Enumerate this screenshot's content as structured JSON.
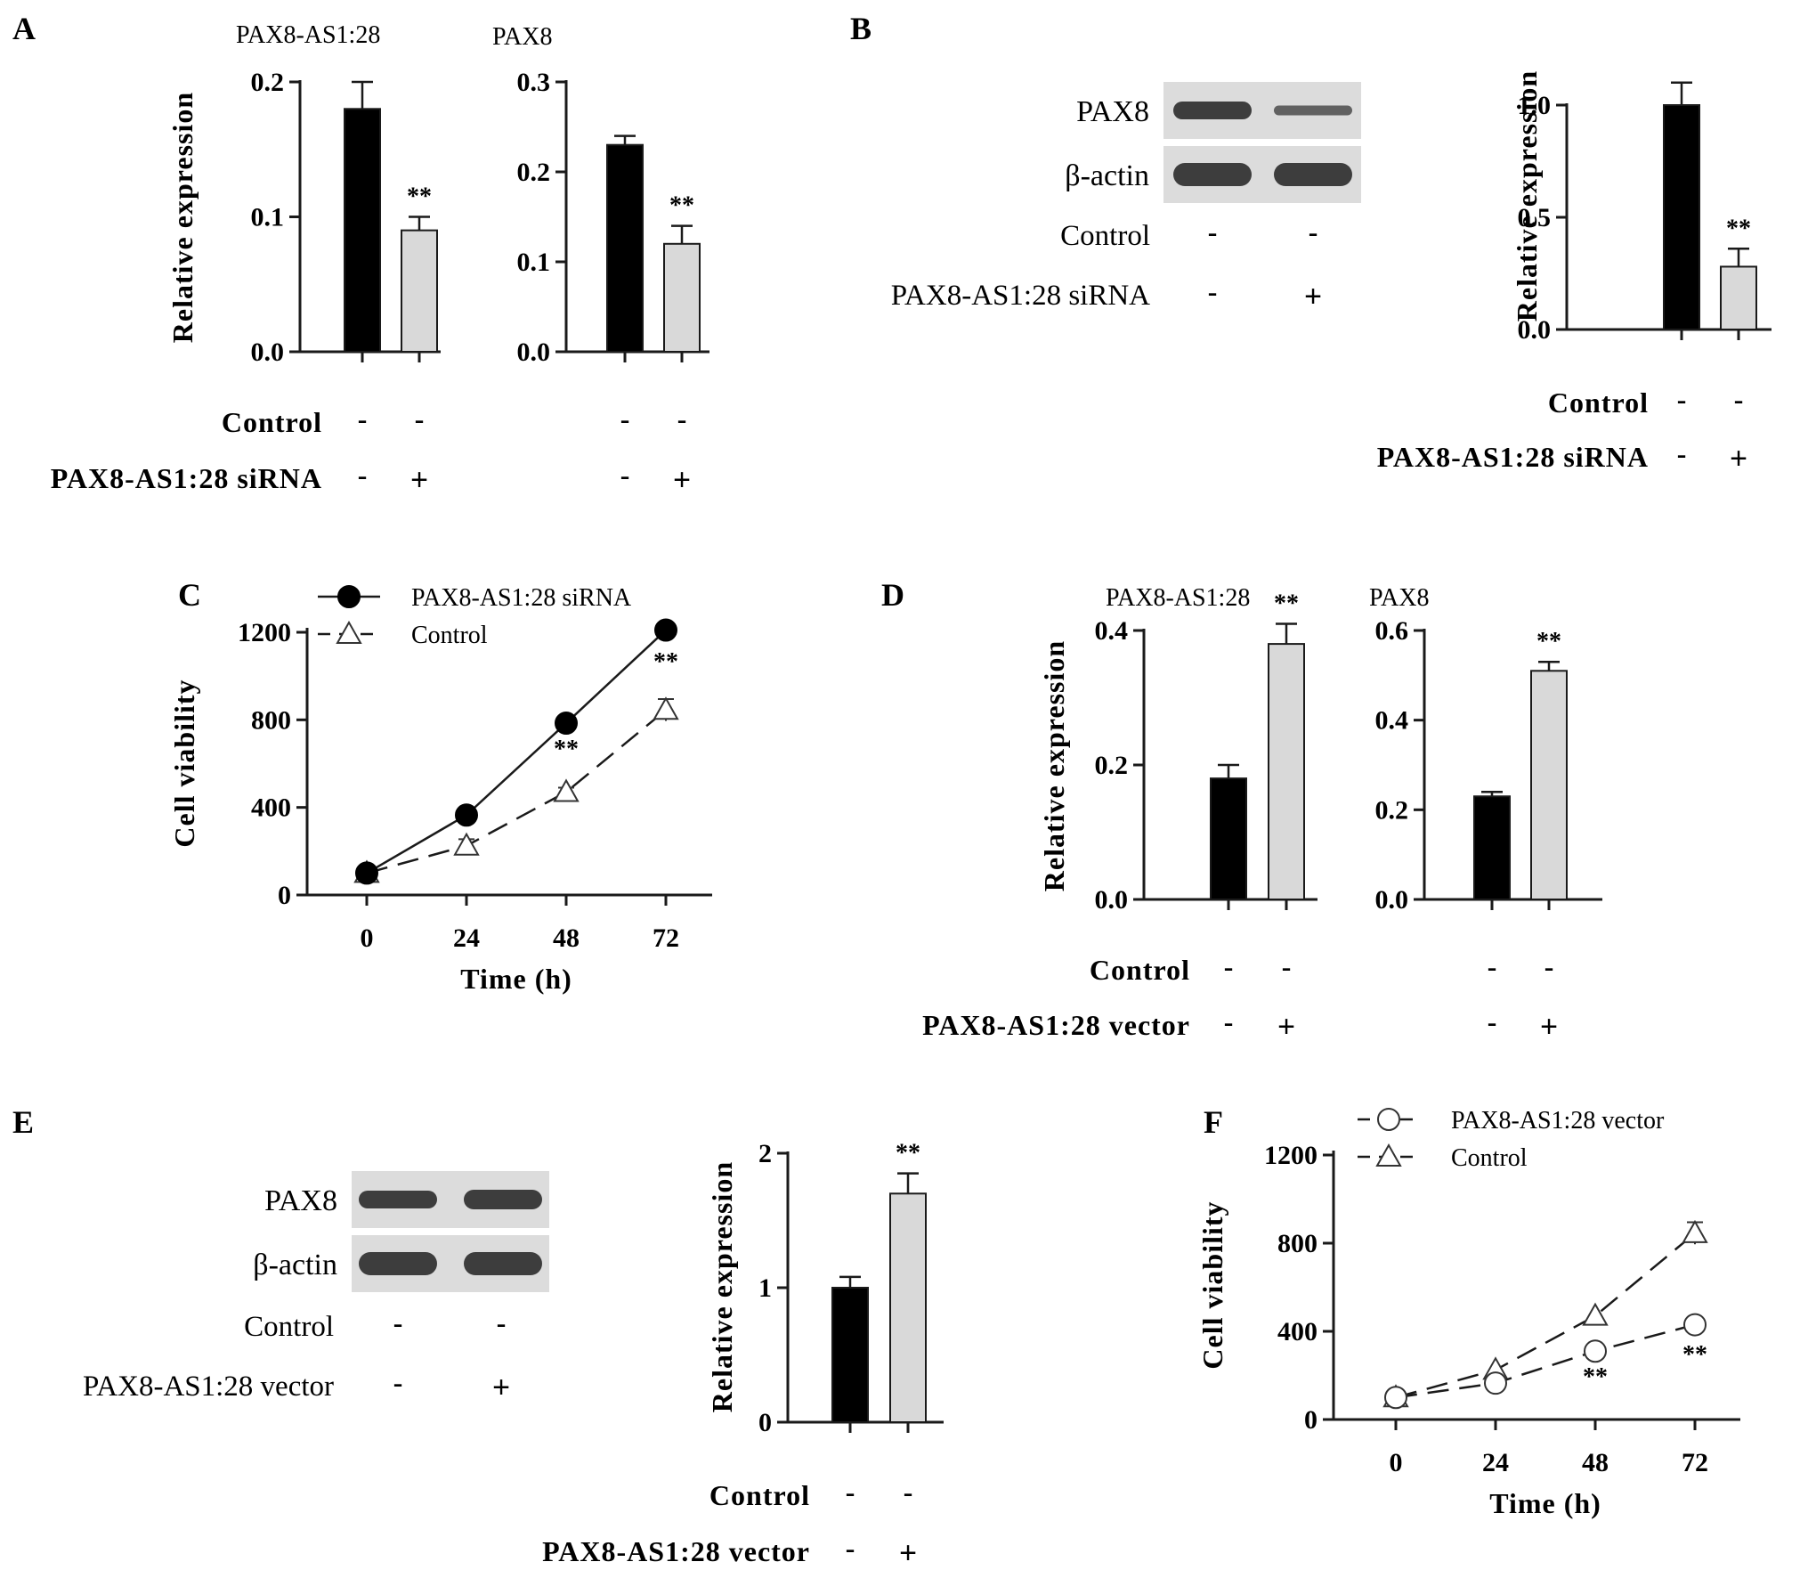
{
  "colors": {
    "control_bar": "#000000",
    "treated_bar": "#d9d9d9",
    "axis": "#1a1a1a",
    "blot_background": "#dcdcdc",
    "band": "#2b2b2b"
  },
  "panels": {
    "A": {
      "letter": "A",
      "rows": [
        {
          "label": "Control",
          "signs": [
            "-",
            "-",
            "-",
            "-"
          ]
        },
        {
          "label": "PAX8-AS1:28 siRNA",
          "signs": [
            "-",
            "+",
            "-",
            "+"
          ]
        }
      ]
    },
    "B": {
      "letter": "B",
      "blot_rows": [
        "PAX8",
        "β-actin"
      ],
      "blot_intensity": {
        "PAX8": [
          1.0,
          0.55
        ],
        "β-actin": [
          1.0,
          1.0
        ]
      },
      "blot_rows_meta": [
        {
          "label": "Control",
          "signs": [
            "-",
            "-"
          ]
        },
        {
          "label": "PAX8-AS1:28 siRNA",
          "signs": [
            "-",
            "+"
          ]
        }
      ],
      "rows": [
        {
          "label": "Control",
          "signs": [
            "-",
            "-"
          ]
        },
        {
          "label": "PAX8-AS1:28 siRNA",
          "signs": [
            "-",
            "+"
          ]
        }
      ]
    },
    "C": {
      "letter": "C"
    },
    "D": {
      "letter": "D",
      "rows": [
        {
          "label": "Control",
          "signs": [
            "-",
            "-",
            "-",
            "-"
          ]
        },
        {
          "label": "PAX8-AS1:28 vector",
          "signs": [
            "-",
            "+",
            "-",
            "+"
          ]
        }
      ]
    },
    "E": {
      "letter": "E",
      "blot_rows": [
        "PAX8",
        "β-actin"
      ],
      "blot_intensity": {
        "PAX8": [
          1.0,
          1.1
        ],
        "β-actin": [
          1.0,
          1.0
        ]
      },
      "blot_rows_meta": [
        {
          "label": "Control",
          "signs": [
            "-",
            "-"
          ]
        },
        {
          "label": "PAX8-AS1:28 vector",
          "signs": [
            "-",
            "+"
          ]
        }
      ],
      "rows": [
        {
          "label": "Control",
          "signs": [
            "-",
            "-"
          ]
        },
        {
          "label": "PAX8-AS1:28 vector",
          "signs": [
            "-",
            "+"
          ]
        }
      ]
    },
    "F": {
      "letter": "F"
    }
  },
  "chart_data": [
    {
      "id": "A1",
      "type": "bar",
      "title": "PAX8-AS1:28",
      "ylabel": "Relative  expression",
      "ylim": [
        0,
        0.2
      ],
      "yticks": [
        "0.0",
        "0.1",
        "0.2"
      ],
      "values": [
        0.18,
        0.09
      ],
      "errors": [
        0.02,
        0.01
      ],
      "significance": [
        "",
        "**"
      ]
    },
    {
      "id": "A2",
      "type": "bar",
      "title": "PAX8",
      "ylabel": "",
      "ylim": [
        0,
        0.3
      ],
      "yticks": [
        "0.0",
        "0.1",
        "0.2",
        "0.3"
      ],
      "values": [
        0.23,
        0.12
      ],
      "errors": [
        0.01,
        0.02
      ],
      "significance": [
        "",
        "**"
      ]
    },
    {
      "id": "B",
      "type": "bar",
      "title": "",
      "ylabel": "Relative expression",
      "ylim": [
        0,
        1.0
      ],
      "yticks": [
        "0.0",
        "0.5",
        "1.0"
      ],
      "values": [
        1.0,
        0.28
      ],
      "errors": [
        0.1,
        0.08
      ],
      "significance": [
        "",
        "**"
      ]
    },
    {
      "id": "C",
      "type": "line",
      "xlabel": "Time (h)",
      "ylabel": "Cell viability",
      "x": [
        0,
        24,
        48,
        72
      ],
      "ylim": [
        0,
        1200
      ],
      "yticks": [
        "0",
        "400",
        "800",
        "1200"
      ],
      "xticks": [
        "0",
        "24",
        "48",
        "72"
      ],
      "series": [
        {
          "name": "PAX8-AS1:28 siRNA",
          "marker": "filled-circle",
          "dash": "solid",
          "values": [
            100,
            365,
            785,
            1210
          ],
          "errors": [
            0,
            0,
            0,
            0
          ]
        },
        {
          "name": "Control",
          "marker": "open-triangle",
          "dash": "dashed",
          "values": [
            100,
            225,
            470,
            845
          ],
          "errors": [
            0,
            30,
            20,
            50
          ]
        }
      ],
      "annotations": [
        {
          "x": 48,
          "text": "**"
        },
        {
          "x": 72,
          "text": "**"
        }
      ]
    },
    {
      "id": "D1",
      "type": "bar",
      "title": "PAX8-AS1:28",
      "ylabel": "Relative expression",
      "ylim": [
        0,
        0.4
      ],
      "yticks": [
        "0.0",
        "0.2",
        "0.4"
      ],
      "values": [
        0.18,
        0.38
      ],
      "errors": [
        0.02,
        0.03
      ],
      "significance": [
        "",
        "**"
      ]
    },
    {
      "id": "D2",
      "type": "bar",
      "title": "PAX8",
      "ylabel": "",
      "ylim": [
        0,
        0.6
      ],
      "yticks": [
        "0.0",
        "0.2",
        "0.4",
        "0.6"
      ],
      "values": [
        0.23,
        0.51
      ],
      "errors": [
        0.01,
        0.02
      ],
      "significance": [
        "",
        "**"
      ]
    },
    {
      "id": "E",
      "type": "bar",
      "title": "",
      "ylabel": "Relative expression",
      "ylim": [
        0,
        2
      ],
      "yticks": [
        "0",
        "1",
        "2"
      ],
      "values": [
        1.0,
        1.7
      ],
      "errors": [
        0.08,
        0.15
      ],
      "significance": [
        "",
        "**"
      ]
    },
    {
      "id": "F",
      "type": "line",
      "xlabel": "Time (h)",
      "ylabel": "Cell viability",
      "x": [
        0,
        24,
        48,
        72
      ],
      "ylim": [
        0,
        1200
      ],
      "yticks": [
        "0",
        "400",
        "800",
        "1200"
      ],
      "xticks": [
        "0",
        "24",
        "48",
        "72"
      ],
      "series": [
        {
          "name": "PAX8-AS1:28 vector",
          "marker": "open-circle",
          "dash": "dashed",
          "values": [
            100,
            165,
            310,
            430
          ],
          "errors": [
            0,
            0,
            0,
            30
          ]
        },
        {
          "name": "Control",
          "marker": "open-triangle",
          "dash": "dashed",
          "values": [
            100,
            225,
            470,
            845
          ],
          "errors": [
            0,
            0,
            0,
            50
          ]
        }
      ],
      "annotations": [
        {
          "x": 48,
          "text": "**"
        },
        {
          "x": 72,
          "text": "**"
        }
      ]
    }
  ]
}
